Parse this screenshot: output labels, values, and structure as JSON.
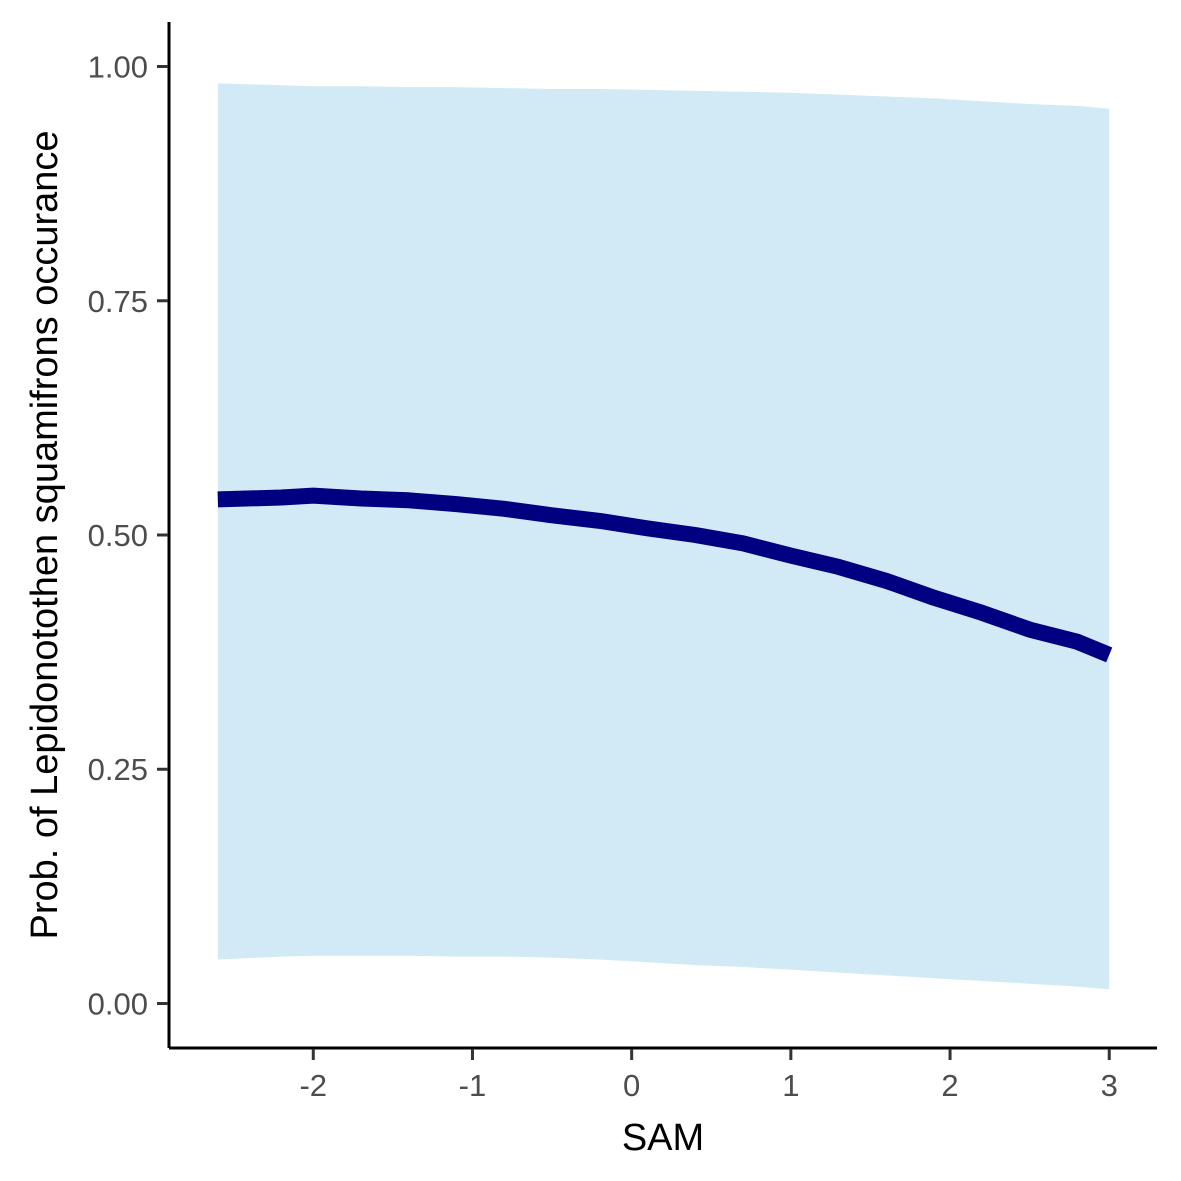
{
  "chart_data": {
    "type": "line",
    "xlabel": "SAM",
    "ylabel": "Prob. of  Lepidonotothen squamifrons  occurance",
    "xlim": [
      -2.9,
      3.3
    ],
    "ylim": [
      -0.0475,
      1.0475
    ],
    "x_ticks": [
      -2,
      -1,
      0,
      1,
      2,
      3
    ],
    "x_tick_labels": [
      "-2",
      "-1",
      "0",
      "1",
      "2",
      "3"
    ],
    "y_ticks": [
      0,
      0.25,
      0.5,
      0.75,
      1.0
    ],
    "y_tick_labels": [
      "0.00",
      "0.25",
      "0.50",
      "0.75",
      "1.00"
    ],
    "grid": false,
    "line_color": "#000080",
    "band_color": "#d1eaf6",
    "series": [
      {
        "x": [
          -2.6,
          -2.2,
          -2.0,
          -1.7,
          -1.4,
          -1.1,
          -0.8,
          -0.5,
          -0.2,
          0.1,
          0.4,
          0.7,
          1.0,
          1.3,
          1.6,
          1.9,
          2.2,
          2.5,
          2.8,
          3.0
        ],
        "y": [
          0.538,
          0.54,
          0.542,
          0.539,
          0.537,
          0.533,
          0.528,
          0.521,
          0.515,
          0.507,
          0.5,
          0.491,
          0.478,
          0.466,
          0.451,
          0.433,
          0.417,
          0.399,
          0.386,
          0.372
        ],
        "lower": [
          0.047,
          0.05,
          0.051,
          0.051,
          0.051,
          0.05,
          0.05,
          0.049,
          0.047,
          0.044,
          0.041,
          0.039,
          0.036,
          0.033,
          0.03,
          0.027,
          0.024,
          0.021,
          0.018,
          0.015
        ],
        "upper": [
          0.982,
          0.98,
          0.979,
          0.979,
          0.978,
          0.978,
          0.977,
          0.976,
          0.976,
          0.975,
          0.974,
          0.973,
          0.972,
          0.97,
          0.968,
          0.966,
          0.963,
          0.96,
          0.958,
          0.955
        ]
      }
    ]
  }
}
